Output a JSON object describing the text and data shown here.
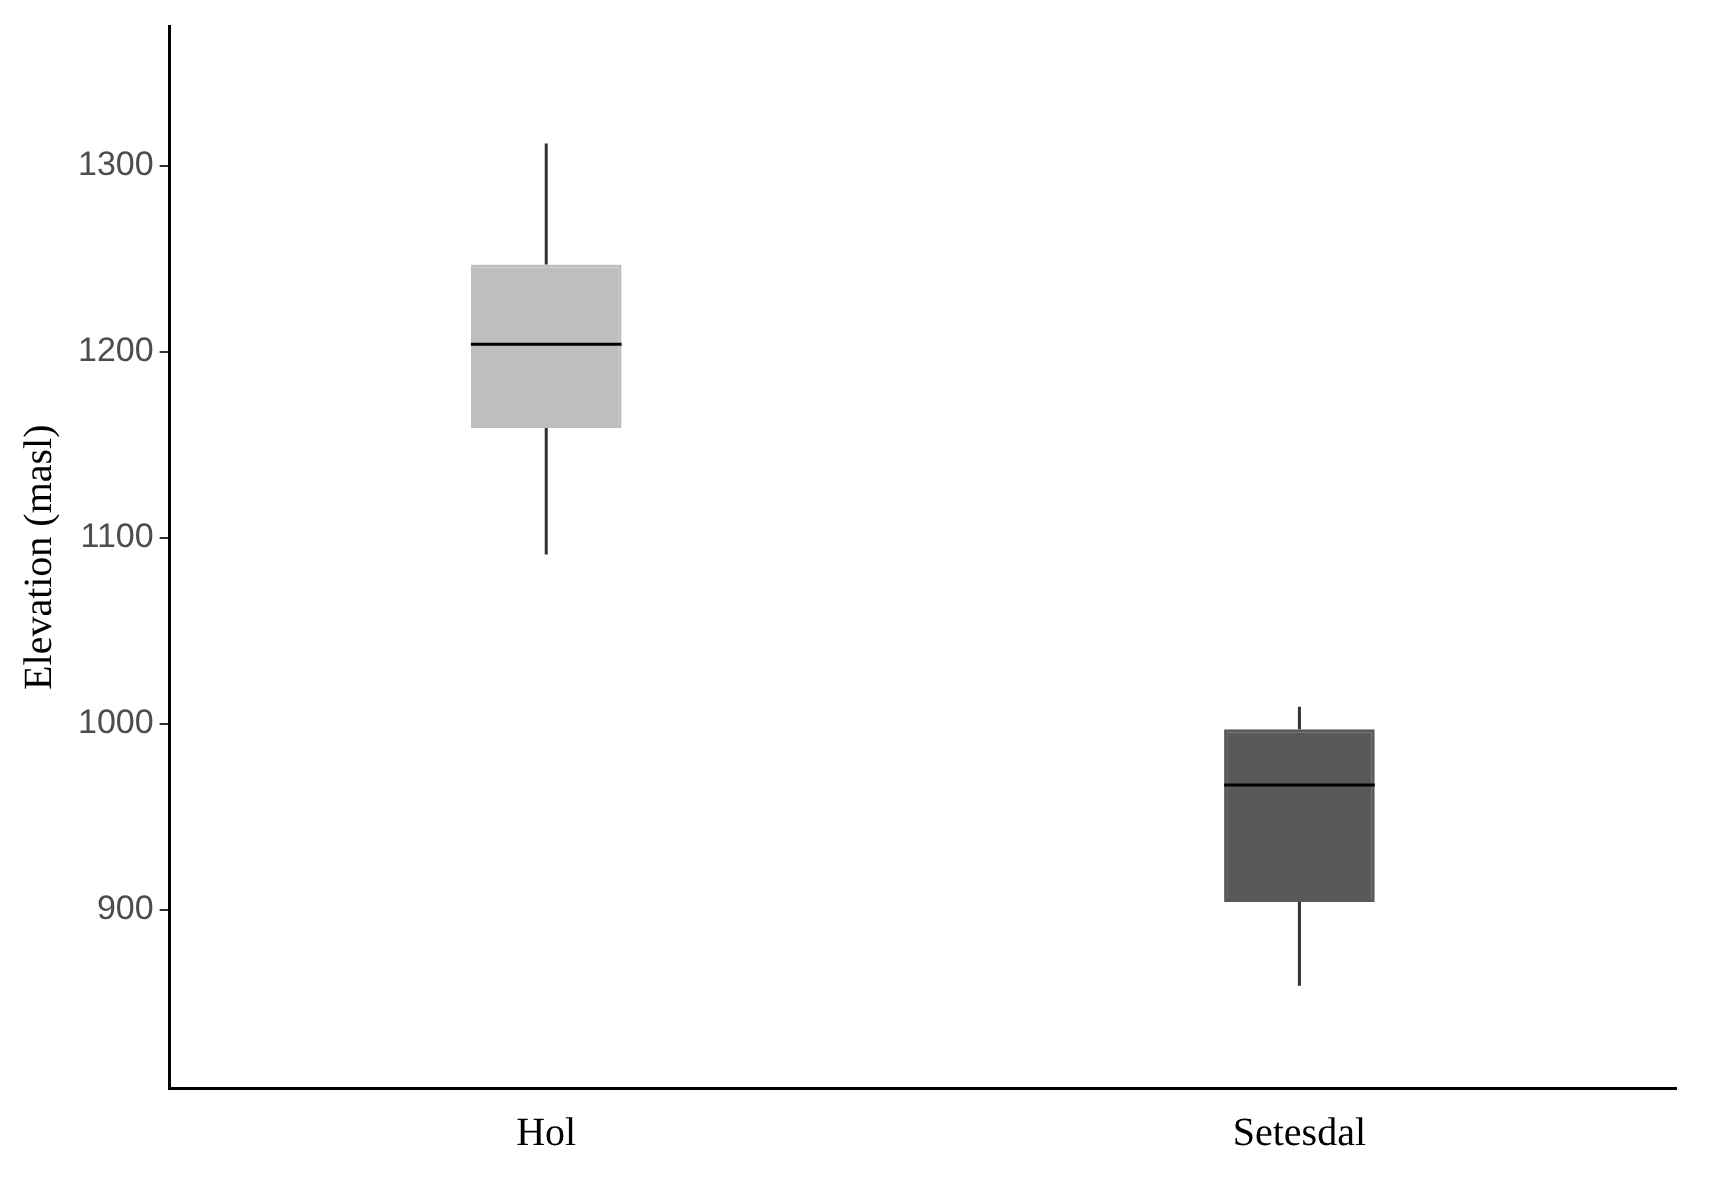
{
  "chart_data": {
    "type": "box",
    "ylabel": "Elevation (masl)",
    "categories": [
      "Hol",
      "Setesdal"
    ],
    "boxes": [
      {
        "low": 1091,
        "q1": 1159,
        "median": 1204,
        "q3": 1247,
        "high": 1312
      },
      {
        "low": 859,
        "q1": 904,
        "median": 967,
        "q3": 997,
        "high": 1009
      }
    ],
    "colors": [
      "#bebebe",
      "#595959"
    ],
    "ylim": [
      804,
      1375
    ],
    "yticks": [
      900,
      1000,
      1100,
      1200,
      1300
    ],
    "grid": false,
    "legend": false
  }
}
